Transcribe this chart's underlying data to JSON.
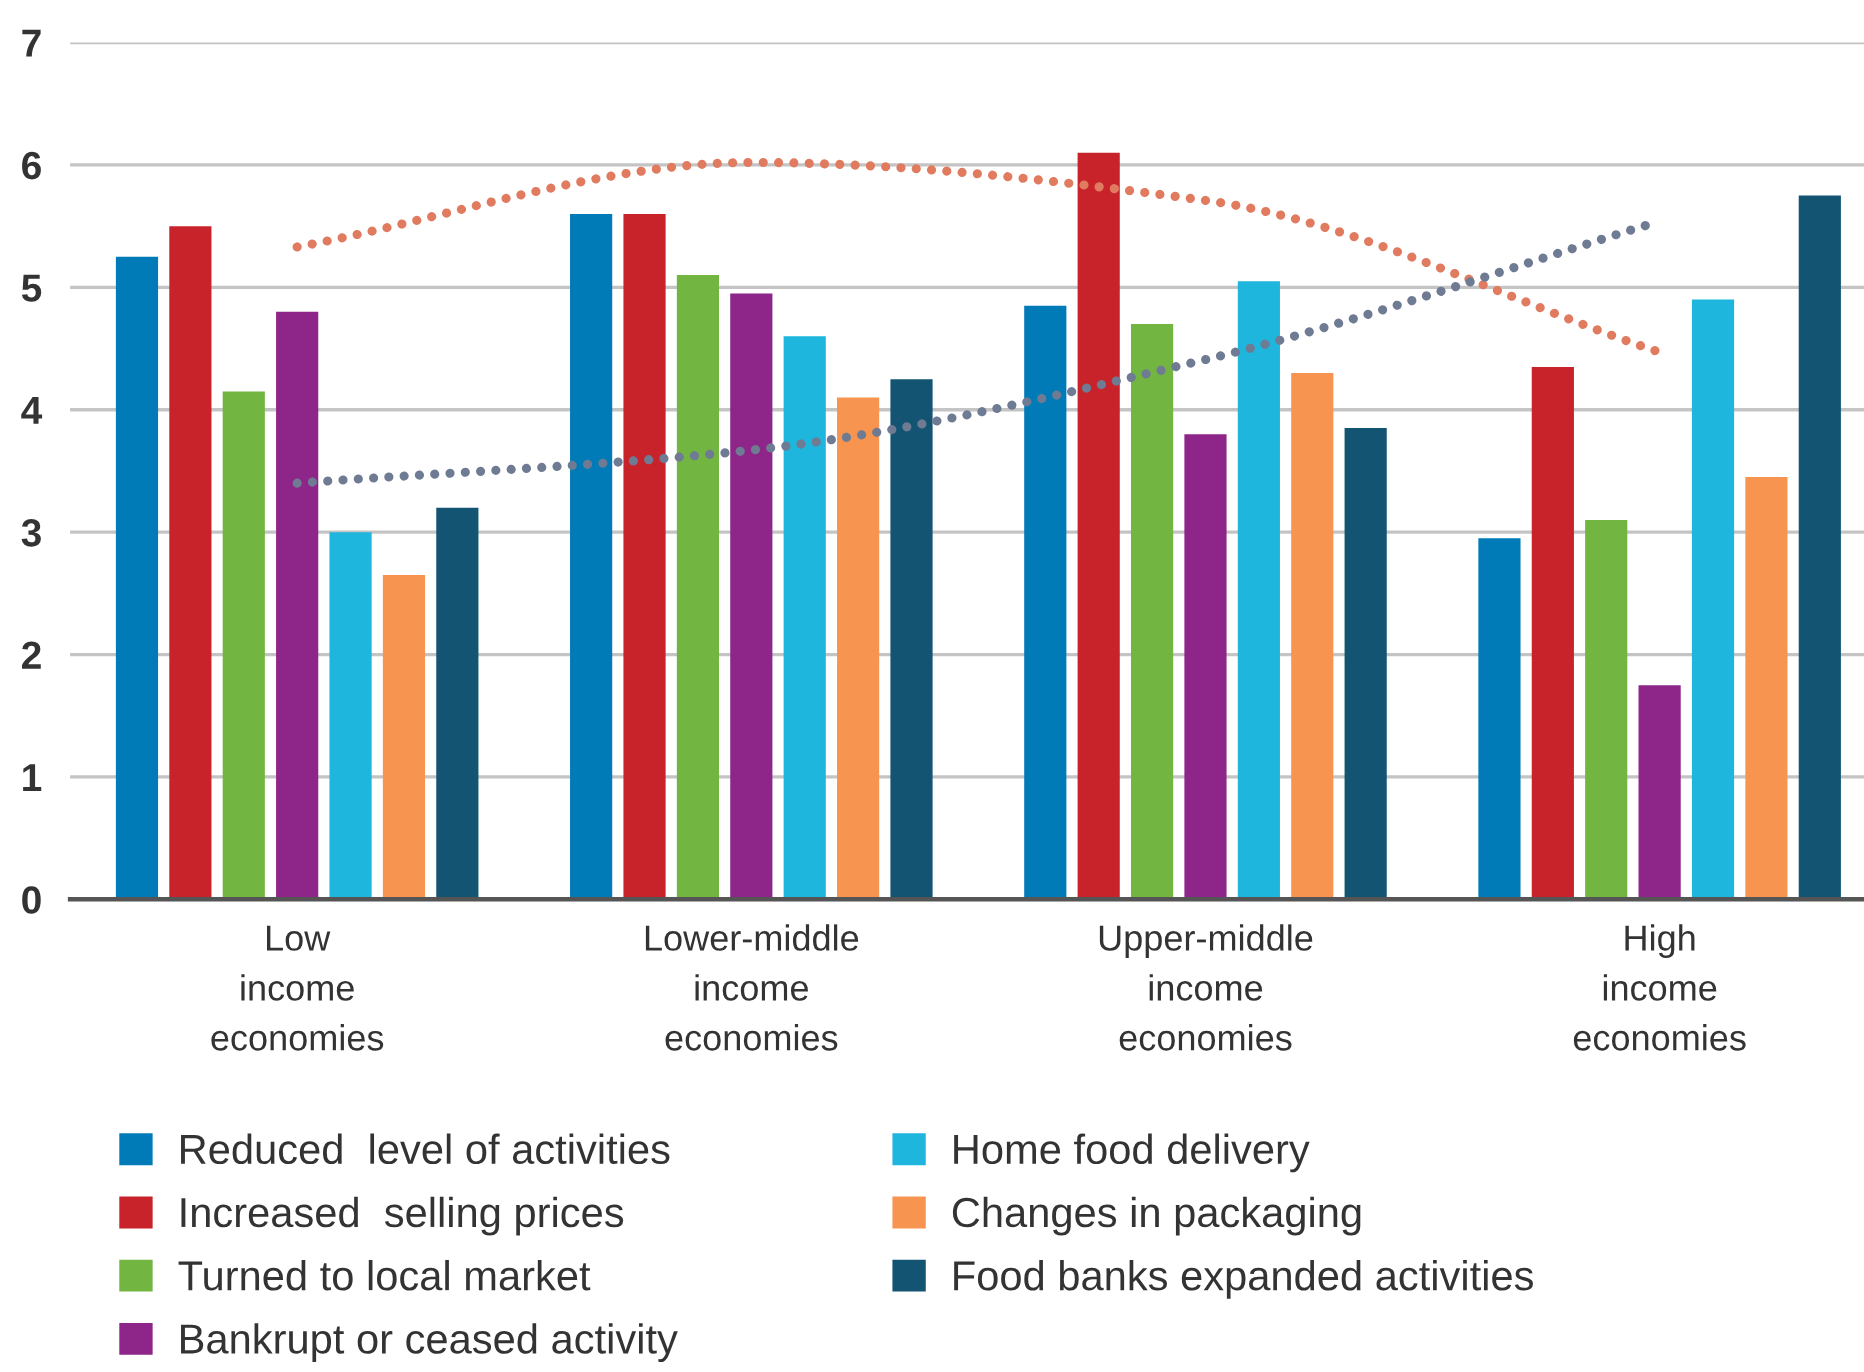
{
  "chart_data": {
    "type": "bar",
    "categories": [
      "Low income economies",
      "Lower-middle income economies",
      "Upper-middle income economies",
      "High income economies"
    ],
    "series": [
      {
        "name": "Reduced  level of activities",
        "color": "#007bb8",
        "values": [
          5.25,
          5.6,
          4.85,
          2.95
        ]
      },
      {
        "name": "Increased  selling prices",
        "color": "#c8232b",
        "values": [
          5.5,
          5.6,
          6.1,
          4.35
        ]
      },
      {
        "name": "Turned to local market",
        "color": "#72b541",
        "values": [
          4.15,
          5.1,
          4.7,
          3.1
        ]
      },
      {
        "name": "Bankrupt or ceased activity",
        "color": "#8e2589",
        "values": [
          4.8,
          4.95,
          3.8,
          1.75
        ]
      },
      {
        "name": "Home food delivery",
        "color": "#1eb6dc",
        "values": [
          3.0,
          4.6,
          5.05,
          4.9
        ]
      },
      {
        "name": "Changes in packaging",
        "color": "#f79550",
        "values": [
          2.65,
          4.1,
          4.3,
          3.45
        ]
      },
      {
        "name": "Food banks expanded activities",
        "color": "#125472",
        "values": [
          3.2,
          4.25,
          3.85,
          5.75
        ]
      },
      {
        "type": "line",
        "color": "#e07b5f",
        "values": [
          5.33,
          6.02,
          5.71,
          4.47
        ]
      },
      {
        "type": "line",
        "color": "#6f7a93",
        "values": [
          3.4,
          3.67,
          4.41,
          5.54
        ]
      }
    ],
    "ylim": [
      0,
      7
    ],
    "yticks": [
      0,
      1,
      2,
      3,
      4,
      5,
      6,
      7
    ],
    "grid": "y",
    "legend": "bottom",
    "line_style": "dotted"
  }
}
